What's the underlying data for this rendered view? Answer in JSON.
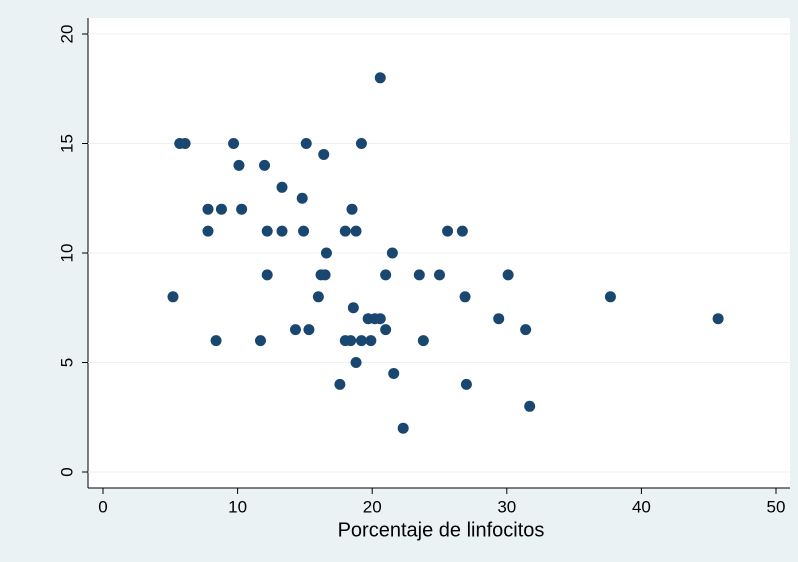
{
  "chart_data": {
    "type": "scatter",
    "x_label": "Porcentaje de linfocitos",
    "x": [
      5.2,
      5.7,
      6.1,
      7.8,
      7.8,
      8.8,
      8.4,
      9.7,
      10.1,
      10.3,
      11.7,
      12.0,
      12.2,
      12.2,
      13.3,
      13.3,
      14.3,
      14.8,
      14.9,
      15.1,
      15.3,
      16.0,
      16.2,
      16.4,
      16.5,
      16.6,
      17.6,
      18.0,
      18.0,
      18.4,
      18.5,
      18.6,
      18.8,
      18.8,
      19.2,
      19.2,
      19.7,
      19.9,
      20.2,
      20.6,
      20.6,
      21.0,
      21.0,
      21.5,
      21.6,
      22.3,
      23.5,
      23.8,
      25.0,
      25.6,
      26.7,
      26.9,
      27.0,
      29.4,
      30.1,
      31.4,
      31.7,
      37.7,
      45.7
    ],
    "y": [
      8,
      15,
      15,
      12,
      11,
      12,
      6,
      15,
      14,
      12,
      6,
      14,
      11,
      9,
      13,
      11,
      6.5,
      12.5,
      11,
      15,
      6.5,
      8,
      9,
      14.5,
      9,
      10,
      4,
      11,
      6,
      6,
      12,
      7.5,
      11,
      5,
      15,
      6,
      7,
      6,
      7,
      18,
      7,
      6.5,
      9,
      10,
      4.5,
      2,
      9,
      6,
      9,
      11,
      11,
      8,
      4,
      7,
      9,
      6.5,
      3,
      8,
      7
    ],
    "color": "#1a476f",
    "xlim": [
      0,
      50
    ],
    "xticks": [
      0,
      10,
      20,
      30,
      40,
      50
    ],
    "ylim": [
      0,
      20
    ],
    "yticks": [
      0,
      5,
      10,
      15,
      20
    ],
    "grid": true
  }
}
